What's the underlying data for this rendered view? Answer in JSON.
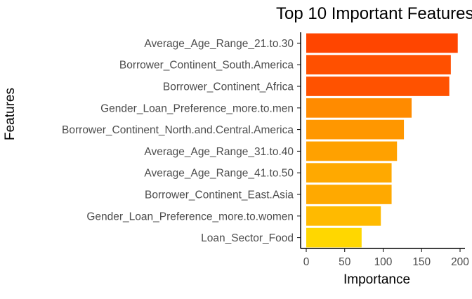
{
  "chart_data": {
    "type": "bar",
    "orientation": "horizontal",
    "title": "Top 10 Important Features",
    "xlabel": "Importance",
    "ylabel": "Features",
    "categories": [
      "Average_Age_Range_21.to.30",
      "Borrower_Continent_South.America",
      "Borrower_Continent_Africa",
      "Gender_Loan_Preference_more.to.men",
      "Borrower_Continent_North.and.Central.America",
      "Average_Age_Range_31.to.40",
      "Average_Age_Range_41.to.50",
      "Borrower_Continent_East.Asia",
      "Gender_Loan_Preference_more.to.women",
      "Loan_Sector_Food"
    ],
    "values": [
      197,
      188,
      186,
      137,
      127,
      118,
      111,
      111,
      97,
      72
    ],
    "xlim": [
      0,
      200
    ],
    "xticks": [
      0,
      50,
      100,
      150,
      200
    ],
    "grid": false,
    "legend": "none",
    "colors": {
      "high": "#FF4500",
      "low": "#FFD700",
      "axis": "#000000",
      "tick_text": "#4D4D4D"
    }
  }
}
